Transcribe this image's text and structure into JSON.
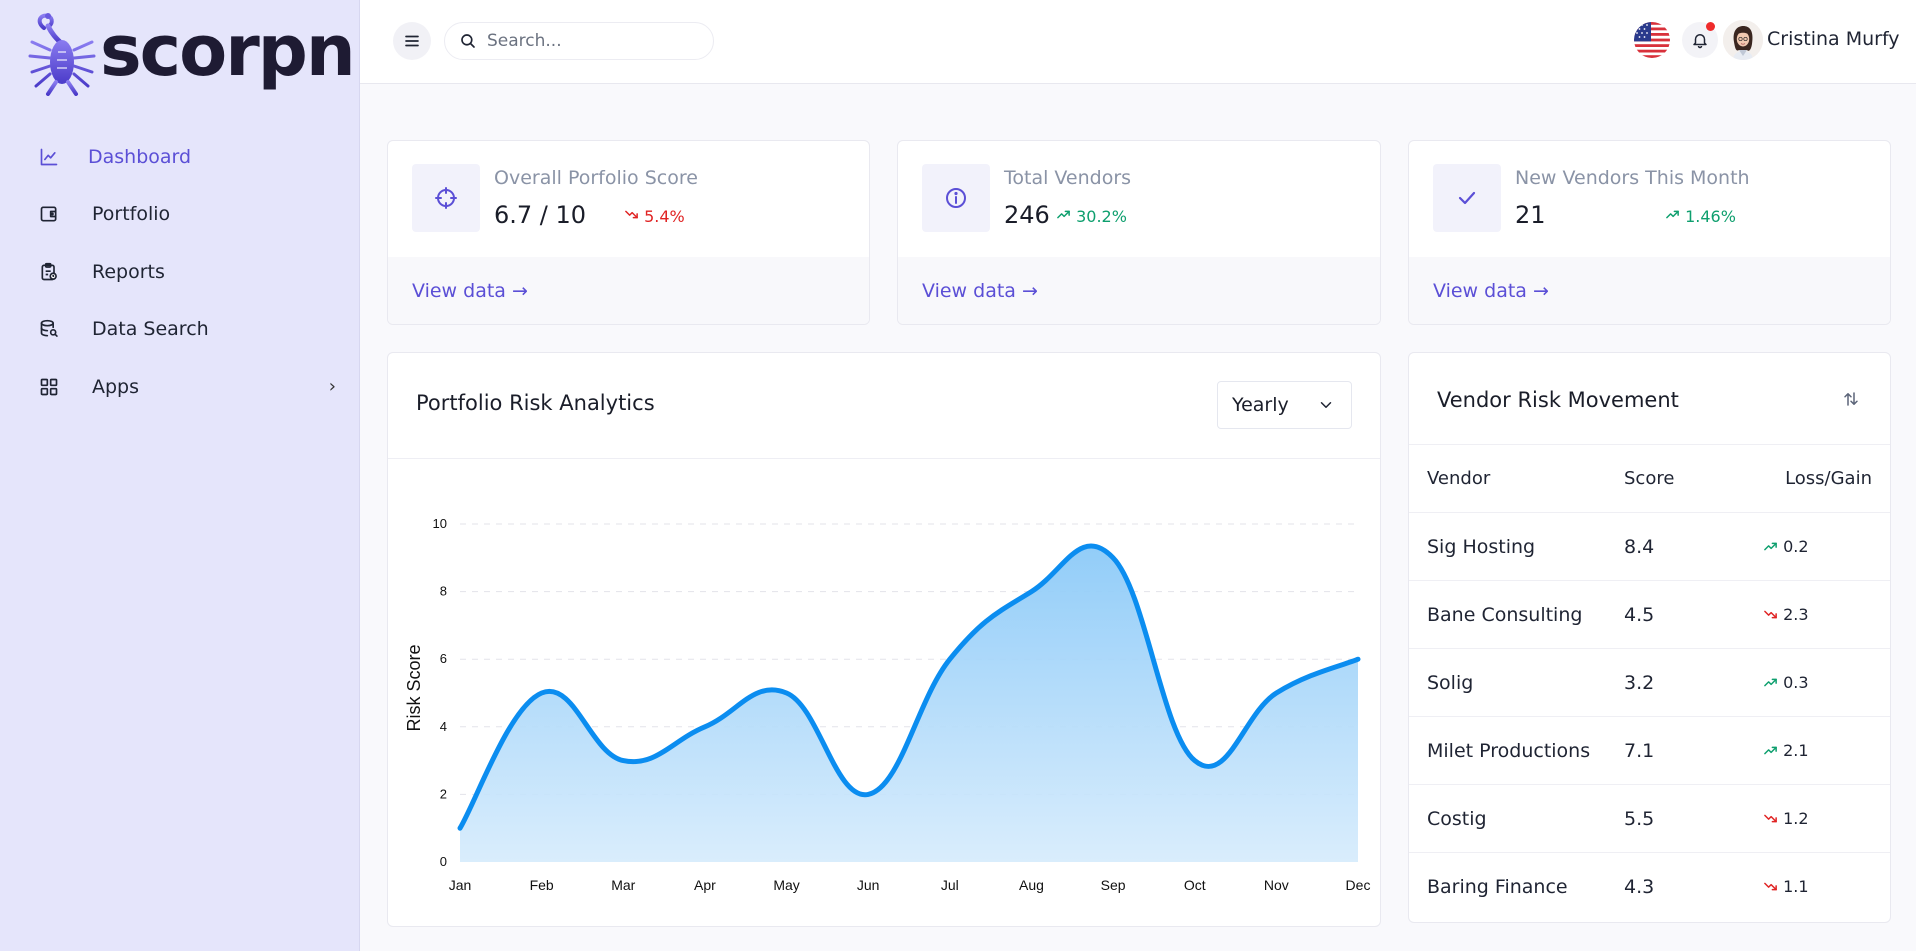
{
  "brand": {
    "name": "scorpn",
    "accent": "#5b4fd6"
  },
  "sidebar": {
    "items": [
      {
        "label": "Dashboard",
        "icon": "line-chart-icon",
        "active": true
      },
      {
        "label": "Portfolio",
        "icon": "wallet-icon"
      },
      {
        "label": "Reports",
        "icon": "clipboard-icon"
      },
      {
        "label": "Data Search",
        "icon": "database-search-icon"
      },
      {
        "label": "Apps",
        "icon": "grid-icon",
        "has_submenu": true
      }
    ]
  },
  "header": {
    "search_placeholder": "Search...",
    "user_name": "Cristina Murfy",
    "has_notification": true
  },
  "stats": [
    {
      "title": "Overall Porfolio Score",
      "value": "6.7 / 10",
      "change": "5.4%",
      "trend": "down",
      "icon": "crosshair-icon",
      "link": "View data"
    },
    {
      "title": "Total Vendors",
      "value": "246",
      "change": "30.2%",
      "trend": "up",
      "icon": "info-icon",
      "link": "View data"
    },
    {
      "title": "New Vendors This Month",
      "value": "21",
      "change": "1.46%",
      "trend": "up",
      "icon": "check-icon",
      "link": "View data"
    }
  ],
  "chart_card": {
    "title": "Portfolio Risk Analytics",
    "period": "Yearly"
  },
  "chart_data": {
    "type": "area",
    "title": "",
    "categories": [
      "Jan",
      "Feb",
      "Mar",
      "Apr",
      "May",
      "Jun",
      "Jul",
      "Aug",
      "Sep",
      "Oct",
      "Nov",
      "Dec"
    ],
    "series": [
      {
        "values": [
          1,
          5,
          3,
          4,
          5,
          2,
          6,
          8,
          9,
          3,
          5,
          6
        ]
      }
    ],
    "xlabel": "",
    "ylabel": "Risk Score",
    "ylim": [
      0,
      10
    ],
    "yticks": [
      0,
      2,
      4,
      6,
      8,
      10
    ],
    "grid": true,
    "color": "#0b8df0"
  },
  "vendor_table": {
    "title": "Vendor Risk Movement",
    "columns": [
      "Vendor",
      "Score",
      "Loss/Gain"
    ],
    "rows": [
      {
        "vendor": "Sig Hosting",
        "score": "8.4",
        "change": "0.2",
        "trend": "up"
      },
      {
        "vendor": "Bane Consulting",
        "score": "4.5",
        "change": "2.3",
        "trend": "down"
      },
      {
        "vendor": "Solig",
        "score": "3.2",
        "change": "0.3",
        "trend": "up"
      },
      {
        "vendor": "Milet Productions",
        "score": "7.1",
        "change": "2.1",
        "trend": "up"
      },
      {
        "vendor": "Costig",
        "score": "5.5",
        "change": "1.2",
        "trend": "down"
      },
      {
        "vendor": "Baring Finance",
        "score": "4.3",
        "change": "1.1",
        "trend": "down"
      }
    ]
  }
}
